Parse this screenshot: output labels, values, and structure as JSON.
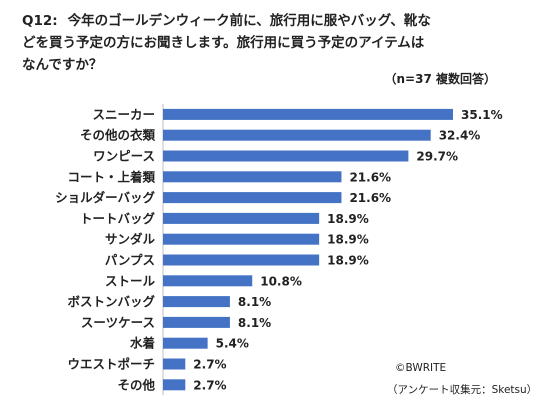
{
  "question": {
    "number": "Q12:",
    "lines": [
      "今年のゴールデンウィーク前に、旅行用に服やバッグ、靴な",
      "どを買う予定の方にお聞きします。旅行用に買う予定のアイテムは",
      "なんですか？"
    ]
  },
  "note": "（n=37 複数回答）",
  "copyright": "©BWRITE",
  "source": "（アンケート収集元：Sketsu）",
  "colors": {
    "bar": "#4472C4"
  },
  "chart_data": {
    "type": "bar",
    "orientation": "horizontal",
    "categories": [
      "スニーカー",
      "その他の衣類",
      "ワンピース",
      "コート・上着類",
      "ショルダーバッグ",
      "トートバッグ",
      "サンダル",
      "パンプス",
      "ストール",
      "ボストンバッグ",
      "スーツケース",
      "水着",
      "ウエストポーチ",
      "その他"
    ],
    "values": [
      35.1,
      32.4,
      29.7,
      21.6,
      21.6,
      18.9,
      18.9,
      18.9,
      10.8,
      8.1,
      8.1,
      5.4,
      2.7,
      2.7
    ],
    "value_labels": [
      "35.1%",
      "32.4%",
      "29.7%",
      "21.6%",
      "21.6%",
      "18.9%",
      "18.9%",
      "18.9%",
      "10.8%",
      "8.1%",
      "8.1%",
      "5.4%",
      "2.7%",
      "2.7%"
    ],
    "unit": "%",
    "xlim": [
      0,
      35.1
    ],
    "grid": false,
    "legend": "none"
  }
}
